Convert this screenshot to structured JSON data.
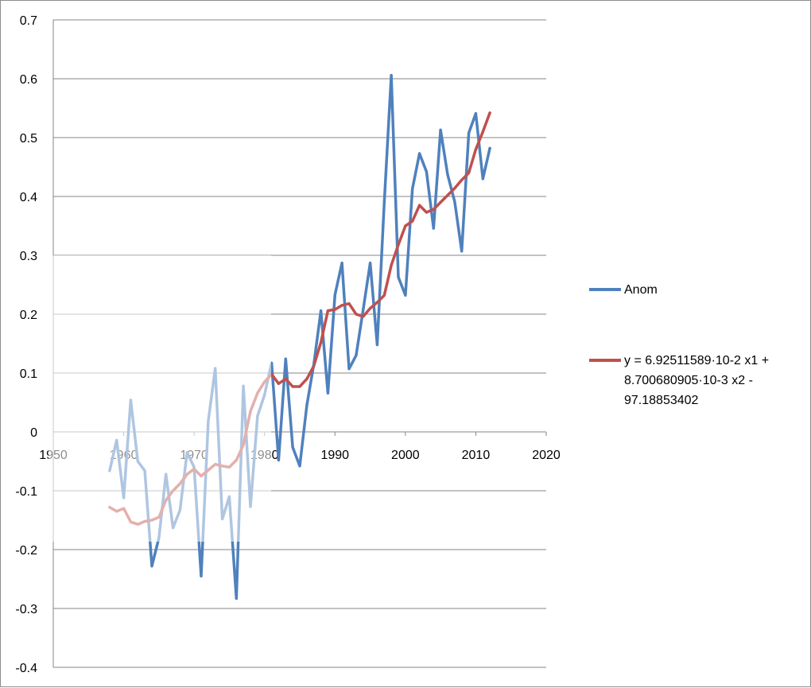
{
  "chart_data": {
    "type": "line",
    "title": "",
    "xlabel": "",
    "ylabel": "",
    "xlim": [
      1950,
      2020
    ],
    "ylim": [
      -0.4,
      0.7
    ],
    "x_ticks": [
      "1950",
      "1960",
      "1970",
      "1980",
      "1990",
      "2000",
      "2010",
      "2020"
    ],
    "y_ticks": [
      "0.7",
      "0.6",
      "0.5",
      "0.4",
      "0.3",
      "0.2",
      "0.1",
      "0",
      "-0.1",
      "-0.2",
      "-0.3",
      "-0.4"
    ],
    "grid": true,
    "legend_position": "right",
    "series": [
      {
        "name": "Anom",
        "color": "#4f81bd",
        "x": [
          1958,
          1959,
          1960,
          1961,
          1962,
          1963,
          1964,
          1965,
          1966,
          1967,
          1968,
          1969,
          1970,
          1971,
          1972,
          1973,
          1974,
          1975,
          1976,
          1977,
          1978,
          1979,
          1980,
          1981,
          1982,
          1983,
          1984,
          1985,
          1986,
          1987,
          1988,
          1989,
          1990,
          1991,
          1992,
          1993,
          1994,
          1995,
          1996,
          1997,
          1998,
          1999,
          2000,
          2001,
          2002,
          2003,
          2004,
          2005,
          2006,
          2007,
          2008,
          2009,
          2010,
          2011,
          2012
        ],
        "y": [
          -0.066,
          -0.014,
          -0.112,
          0.054,
          -0.05,
          -0.066,
          -0.228,
          -0.18,
          -0.072,
          -0.163,
          -0.133,
          -0.035,
          -0.06,
          -0.245,
          0.018,
          0.108,
          -0.148,
          -0.11,
          -0.283,
          0.078,
          -0.127,
          0.027,
          0.063,
          0.117,
          -0.048,
          0.124,
          -0.026,
          -0.058,
          0.045,
          0.115,
          0.206,
          0.066,
          0.233,
          0.287,
          0.107,
          0.13,
          0.207,
          0.287,
          0.148,
          0.39,
          0.606,
          0.263,
          0.232,
          0.413,
          0.473,
          0.442,
          0.346,
          0.513,
          0.437,
          0.391,
          0.307,
          0.508,
          0.541,
          0.43,
          0.482
        ]
      },
      {
        "name": "y = 6.92511589·10-2 x1 + 8.700680905·10-3 x2 - 97.18853402",
        "color": "#c0504d",
        "x": [
          1958,
          1959,
          1960,
          1961,
          1962,
          1963,
          1964,
          1965,
          1966,
          1967,
          1968,
          1969,
          1970,
          1971,
          1972,
          1973,
          1974,
          1975,
          1976,
          1977,
          1978,
          1979,
          1980,
          1981,
          1982,
          1983,
          1984,
          1985,
          1986,
          1987,
          1988,
          1989,
          1990,
          1991,
          1992,
          1993,
          1994,
          1995,
          1996,
          1997,
          1998,
          1999,
          2000,
          2001,
          2002,
          2003,
          2004,
          2005,
          2006,
          2007,
          2008,
          2009,
          2010,
          2011,
          2012
        ],
        "y": [
          -0.128,
          -0.135,
          -0.13,
          -0.153,
          -0.157,
          -0.152,
          -0.15,
          -0.145,
          -0.116,
          -0.1,
          -0.088,
          -0.072,
          -0.063,
          -0.075,
          -0.065,
          -0.055,
          -0.058,
          -0.06,
          -0.048,
          -0.022,
          0.035,
          0.066,
          0.085,
          0.098,
          0.082,
          0.09,
          0.077,
          0.077,
          0.09,
          0.112,
          0.152,
          0.206,
          0.208,
          0.215,
          0.218,
          0.2,
          0.196,
          0.21,
          0.22,
          0.232,
          0.283,
          0.318,
          0.35,
          0.358,
          0.385,
          0.373,
          0.378,
          0.39,
          0.402,
          0.414,
          0.428,
          0.44,
          0.48,
          0.51,
          0.542
        ]
      }
    ],
    "legend_labels": {
      "anom": "Anom",
      "fit_line1": "y = 6.92511589·10-2 x1 +",
      "fit_line2": "8.700680905·10-3 x2 -",
      "fit_line3": "97.18853402"
    }
  }
}
